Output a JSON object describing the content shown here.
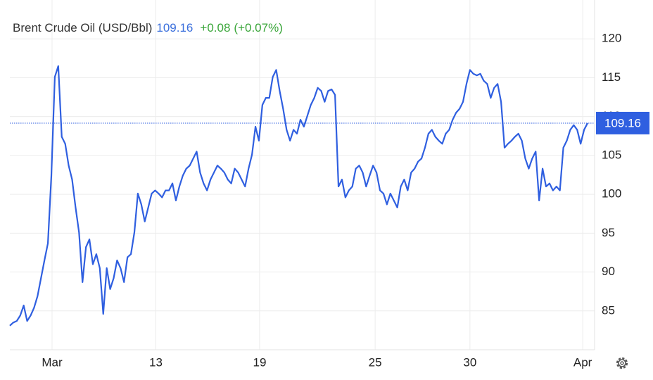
{
  "chart_data": {
    "type": "line",
    "title": "Brent Crude Oil (USD/Bbl)",
    "last_value": 109.16,
    "change": {
      "value": 0.08,
      "label": "+0.08"
    },
    "change_pct": {
      "value": 0.07,
      "label": "(+0.07%)"
    },
    "color": "#2f5fe0",
    "grid": true,
    "x": [
      0,
      1,
      2,
      3,
      4,
      5,
      6,
      7,
      8,
      9,
      10,
      11,
      12,
      13,
      14,
      15,
      16,
      17,
      18,
      19,
      20,
      21,
      22,
      23,
      24,
      25,
      26,
      27,
      28,
      29,
      30,
      31,
      32,
      33,
      34,
      35,
      36,
      37,
      38,
      39,
      40,
      41,
      42,
      43,
      44,
      45,
      46,
      47,
      48,
      49,
      50,
      51,
      52,
      53,
      54,
      55,
      56,
      57,
      58,
      59,
      60,
      61,
      62,
      63,
      64,
      65,
      66,
      67,
      68,
      69,
      70,
      71,
      72,
      73,
      74,
      75,
      76,
      77,
      78,
      79,
      80,
      81,
      82,
      83,
      84,
      85,
      86,
      87,
      88,
      89,
      90,
      91,
      92,
      93,
      94,
      95,
      96,
      97,
      98,
      99,
      100,
      101,
      102,
      103,
      104,
      105,
      106,
      107,
      108,
      109,
      110,
      111,
      112,
      113,
      114,
      115,
      116,
      117,
      118,
      119,
      120,
      121,
      122,
      123,
      124,
      125,
      126,
      127,
      128,
      129,
      130,
      131,
      132,
      133,
      134,
      135,
      136,
      137,
      138,
      139,
      140,
      141,
      142,
      143,
      144,
      145,
      146,
      147,
      148,
      149,
      150,
      151,
      152,
      153,
      154,
      155,
      156,
      157,
      158,
      159,
      160,
      161,
      162,
      163,
      164,
      165,
      166,
      167
    ],
    "values": [
      83.1,
      83.5,
      83.7,
      84.4,
      85.7,
      83.7,
      84.4,
      85.4,
      86.9,
      89.2,
      91.5,
      93.7,
      102.4,
      115.1,
      116.5,
      107.4,
      106.5,
      103.7,
      101.9,
      98.3,
      95.1,
      88.7,
      93.2,
      94.2,
      91.0,
      92.3,
      90.5,
      84.6,
      90.5,
      87.8,
      89.2,
      91.5,
      90.5,
      88.7,
      91.9,
      92.3,
      95.1,
      100.1,
      98.7,
      96.5,
      98.3,
      100.1,
      100.5,
      100.1,
      99.6,
      100.5,
      100.5,
      101.4,
      99.2,
      101.0,
      102.4,
      103.3,
      103.7,
      104.6,
      105.5,
      102.8,
      101.4,
      100.5,
      101.9,
      102.8,
      103.7,
      103.3,
      102.8,
      101.9,
      101.4,
      103.3,
      102.8,
      101.9,
      101.0,
      103.3,
      105.1,
      108.7,
      106.9,
      111.5,
      112.4,
      112.4,
      115.1,
      116.0,
      113.3,
      111.0,
      108.3,
      106.9,
      108.3,
      107.8,
      109.6,
      108.7,
      110.1,
      111.5,
      112.4,
      113.7,
      113.3,
      111.9,
      113.3,
      113.5,
      112.8,
      101.0,
      101.9,
      99.6,
      100.5,
      101.0,
      103.3,
      103.7,
      102.8,
      101.0,
      102.4,
      103.7,
      102.8,
      100.5,
      100.1,
      98.7,
      100.1,
      99.2,
      98.3,
      101.0,
      101.9,
      100.5,
      102.8,
      103.3,
      104.2,
      104.6,
      106.0,
      107.8,
      108.3,
      107.4,
      106.9,
      106.5,
      107.8,
      108.3,
      109.6,
      110.5,
      111.0,
      111.9,
      114.2,
      116.0,
      115.5,
      115.3,
      115.5,
      114.6,
      114.2,
      112.4,
      113.7,
      114.2,
      111.9,
      106.0,
      106.5,
      106.9,
      107.4,
      107.8,
      106.9,
      104.6,
      103.3,
      104.6,
      105.5,
      99.2,
      103.3,
      101.0,
      101.4,
      100.5,
      101.0,
      100.5,
      106.0,
      106.9,
      108.3,
      108.9,
      108.3,
      106.5,
      108.3,
      109.16
    ],
    "xlim": [
      0,
      167
    ],
    "xticks": [
      {
        "value": 12.2,
        "label": "Mar"
      },
      {
        "value": 42.2,
        "label": "13"
      },
      {
        "value": 72.2,
        "label": "19"
      },
      {
        "value": 105.6,
        "label": "25"
      },
      {
        "value": 133,
        "label": "30"
      },
      {
        "value": 165.6,
        "label": "Apr"
      }
    ],
    "ylim": [
      80,
      125
    ],
    "yticks": [
      85,
      90,
      95,
      100,
      105,
      110,
      115,
      120
    ]
  }
}
